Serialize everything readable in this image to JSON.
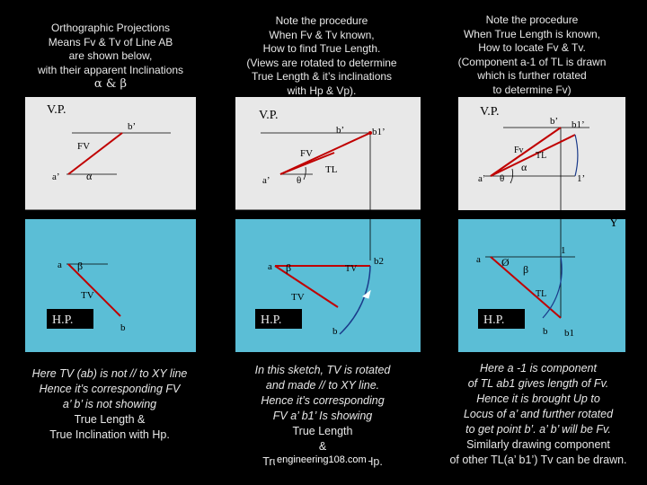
{
  "panels": [
    {
      "header": [
        "Orthographic Projections",
        "Means Fv & Tv of Line AB",
        "are shown below,",
        "with their apparent Inclinations"
      ],
      "header_symbols": "α & β",
      "labels": {
        "vp": "V.P.",
        "hp": "H.P.",
        "x": "X",
        "y": "Y",
        "b_dash": "b’",
        "a_dash": "a’",
        "a": "a",
        "b": "b",
        "fv": "FV",
        "tv": "TV",
        "alpha": "α",
        "beta": "β"
      },
      "footer": [
        "Here TV (ab) is not // to XY line",
        "Hence it’s corresponding FV",
        "a’ b’ is not showing"
      ],
      "footer_plain": [
        "True Length &",
        "True Inclination with Hp."
      ]
    },
    {
      "header": [
        "Note the procedure",
        "When Fv & Tv known,",
        "How to find True Length.",
        "(Views are rotated to determine",
        "True Length & it’s inclinations",
        "with Hp & Vp)."
      ],
      "labels": {
        "vp": "V.P.",
        "hp": "H.P.",
        "x": "X",
        "y": "Y",
        "b_dash": "b’",
        "b1_dash": "b1’",
        "a_dash": "a’",
        "a": "a",
        "b": "b",
        "b2": "b2",
        "fv": "FV",
        "tv": "TV",
        "tl": "TL",
        "theta": "θ",
        "beta": "β"
      },
      "footer": [
        "In this sketch, TV is rotated",
        "and made // to XY line.",
        "Hence it’s corresponding",
        "FV  a’ b1’ Is showing"
      ],
      "footer_plain": [
        "True Length",
        "&",
        "True Inclination with Hp."
      ]
    },
    {
      "header": [
        "Note the procedure",
        "When True Length is known,",
        "How to locate Fv & Tv.",
        "(Component a-1 of TL is drawn",
        "which is further rotated",
        "to determine Fv)"
      ],
      "labels": {
        "vp": "V.P.",
        "hp": "H.P.",
        "x": "X",
        "y": "Y",
        "b_dash": "b’",
        "b1_dash": "b1’",
        "a_dash": "a’",
        "one_dash": "1’",
        "a": "a",
        "one": "1",
        "b": "b",
        "b1": "b1",
        "fv": "Fv",
        "tl": "TL",
        "theta": "θ",
        "alpha": "α",
        "phi": "Ø",
        "beta": "β"
      },
      "footer": [
        "Here a -1 is component",
        "of TL ab1 gives length of Fv.",
        "Hence it is brought  Up to",
        "Locus of a’ and further rotated",
        "to get point b’.  a’ b’ will be Fv."
      ],
      "footer_plain": [
        "Similarly drawing component",
        "of other TL(a’ b1’) Tv can be drawn."
      ]
    }
  ],
  "watermark": "engineering108.com",
  "colors": {
    "line": "#c00000",
    "hp_bg": "#5bbed6",
    "vp_bg": "#e8e8e8",
    "text": "#e8e8e8",
    "locus": "#1a3a8a"
  }
}
